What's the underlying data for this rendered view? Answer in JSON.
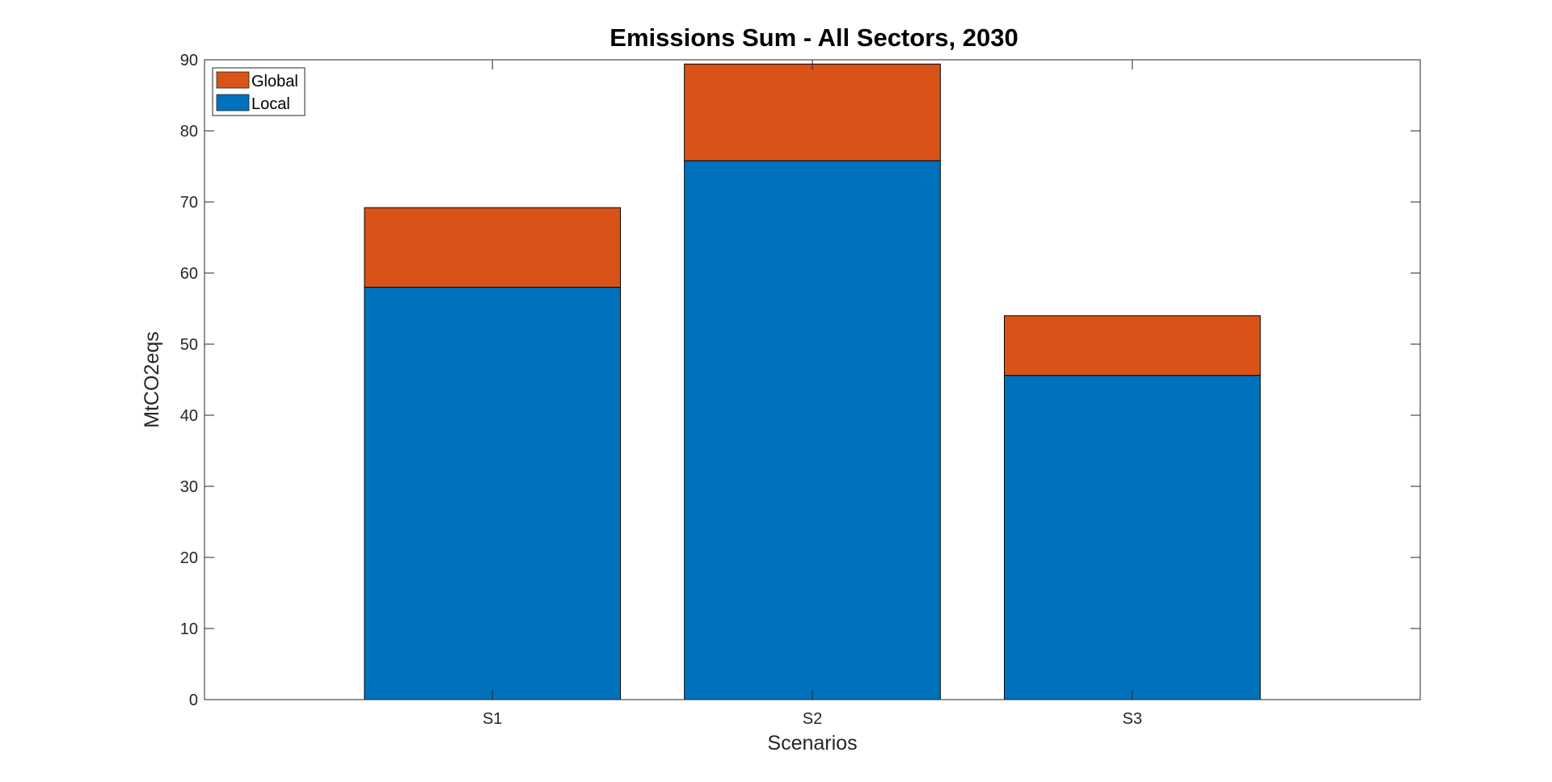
{
  "chart_data": {
    "type": "bar",
    "stacked": true,
    "title": "Emissions Sum - All Sectors, 2030",
    "xlabel": "Scenarios",
    "ylabel": "MtCO2eqs",
    "categories": [
      "S1",
      "S2",
      "S3"
    ],
    "series": [
      {
        "name": "Local",
        "values": [
          58.0,
          75.8,
          45.6
        ],
        "color": "#0072BD"
      },
      {
        "name": "Global",
        "values": [
          11.2,
          13.6,
          8.4
        ],
        "color": "#D95319"
      }
    ],
    "ylim": [
      0,
      90
    ],
    "yticks": [
      0,
      10,
      20,
      30,
      40,
      50,
      60,
      70,
      80,
      90
    ],
    "xlim": [
      0.1,
      3.9
    ],
    "bar_width": 0.8,
    "grid": false,
    "legend": {
      "placement": "top-left",
      "entries": [
        "Global",
        "Local"
      ]
    }
  }
}
